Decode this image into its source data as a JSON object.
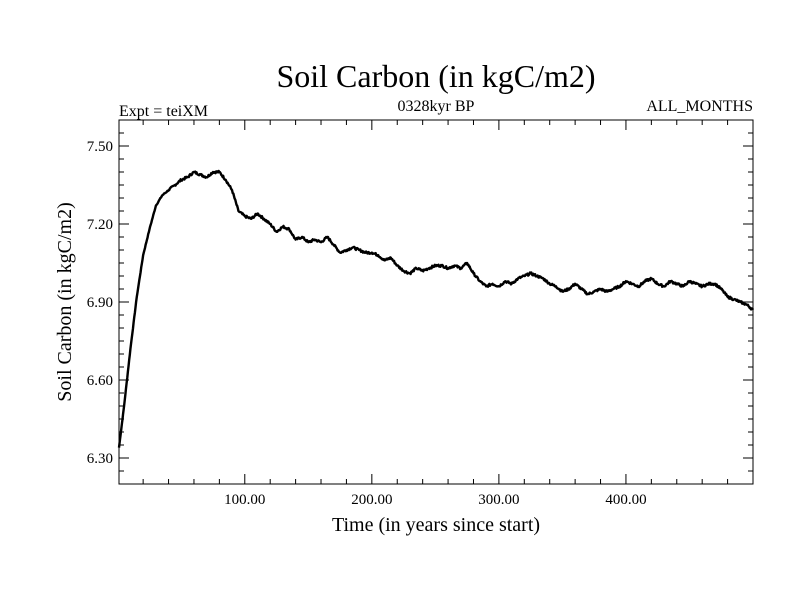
{
  "chart_data": {
    "type": "line",
    "title": "Soil Carbon (in kgC/m2)",
    "subtitle_left": "Expt = teiXM",
    "subtitle_center": "0328kyr BP",
    "subtitle_right": "ALL_MONTHS",
    "xlabel": "Time (in years since start)",
    "ylabel": "Soil Carbon (in kgC/m2)",
    "xlim": [
      1,
      500
    ],
    "ylim": [
      6.2,
      7.6
    ],
    "x_ticks": [
      100,
      200,
      300,
      400
    ],
    "x_tick_labels": [
      "100.00",
      "200.00",
      "300.00",
      "400.00"
    ],
    "y_ticks": [
      6.3,
      6.6,
      6.9,
      7.2,
      7.5
    ],
    "y_tick_labels": [
      "6.30",
      "6.60",
      "6.90",
      "7.20",
      "7.50"
    ],
    "grid": false,
    "series": [
      {
        "name": "Soil Carbon",
        "color": "#000000",
        "x": [
          1,
          5,
          10,
          15,
          20,
          25,
          30,
          35,
          40,
          45,
          50,
          55,
          60,
          65,
          70,
          75,
          80,
          85,
          90,
          95,
          100,
          105,
          110,
          115,
          120,
          125,
          130,
          135,
          140,
          145,
          150,
          155,
          160,
          165,
          170,
          175,
          180,
          185,
          190,
          195,
          200,
          205,
          210,
          215,
          220,
          225,
          230,
          235,
          240,
          245,
          250,
          255,
          260,
          265,
          270,
          275,
          280,
          285,
          290,
          295,
          300,
          305,
          310,
          315,
          320,
          325,
          330,
          335,
          340,
          345,
          350,
          355,
          360,
          365,
          370,
          375,
          380,
          385,
          390,
          395,
          400,
          405,
          410,
          415,
          420,
          425,
          430,
          435,
          440,
          445,
          450,
          455,
          460,
          465,
          470,
          475,
          480,
          485,
          490,
          495,
          500
        ],
        "y": [
          6.34,
          6.5,
          6.72,
          6.92,
          7.08,
          7.18,
          7.27,
          7.31,
          7.33,
          7.35,
          7.37,
          7.38,
          7.4,
          7.39,
          7.38,
          7.4,
          7.4,
          7.37,
          7.33,
          7.25,
          7.23,
          7.22,
          7.24,
          7.22,
          7.2,
          7.17,
          7.19,
          7.18,
          7.14,
          7.15,
          7.13,
          7.14,
          7.13,
          7.15,
          7.12,
          7.09,
          7.1,
          7.11,
          7.1,
          7.09,
          7.09,
          7.08,
          7.06,
          7.07,
          7.04,
          7.02,
          7.01,
          7.03,
          7.02,
          7.03,
          7.04,
          7.04,
          7.03,
          7.04,
          7.03,
          7.05,
          7.01,
          6.98,
          6.96,
          6.97,
          6.96,
          6.98,
          6.97,
          6.99,
          7.0,
          7.01,
          7.0,
          6.99,
          6.97,
          6.96,
          6.94,
          6.95,
          6.97,
          6.95,
          6.93,
          6.94,
          6.95,
          6.94,
          6.95,
          6.96,
          6.98,
          6.97,
          6.96,
          6.98,
          6.99,
          6.97,
          6.96,
          6.98,
          6.97,
          6.96,
          6.98,
          6.97,
          6.96,
          6.97,
          6.97,
          6.95,
          6.92,
          6.91,
          6.9,
          6.89,
          6.87
        ]
      }
    ]
  }
}
